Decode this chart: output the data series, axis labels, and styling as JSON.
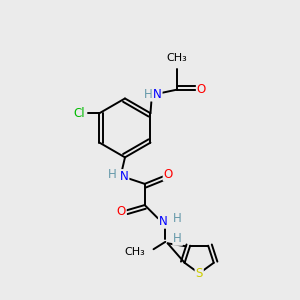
{
  "bg_color": "#ebebeb",
  "atom_colors": {
    "C": "#000000",
    "H": "#6699aa",
    "N": "#0000ff",
    "O": "#ff0000",
    "S": "#cccc00",
    "Cl": "#00bb00"
  },
  "lw": 1.4,
  "fs": 8.5
}
